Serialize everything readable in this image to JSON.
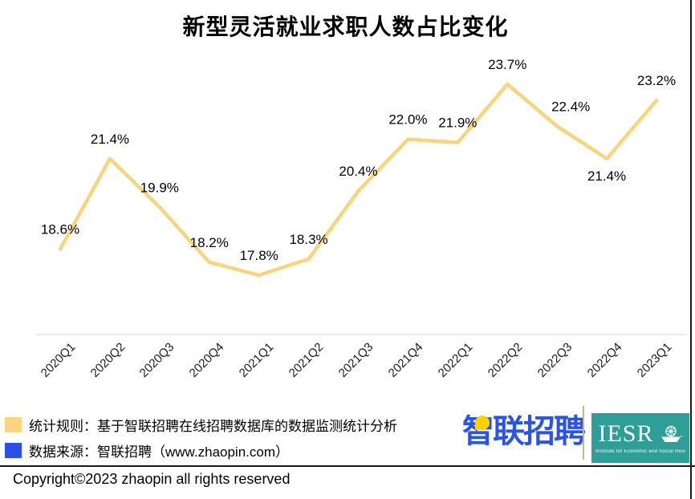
{
  "page": {
    "title": "新型灵活就业求职人数占比变化"
  },
  "chart_data": {
    "type": "line",
    "title": "新型灵活就业求职人数占比变化",
    "categories": [
      "2020Q1",
      "2020Q2",
      "2020Q3",
      "2020Q4",
      "2021Q1",
      "2021Q2",
      "2021Q3",
      "2021Q4",
      "2022Q1",
      "2022Q2",
      "2022Q3",
      "2022Q4",
      "2023Q1"
    ],
    "values": [
      18.6,
      21.4,
      19.9,
      18.2,
      17.8,
      18.3,
      20.4,
      22.0,
      21.9,
      23.7,
      22.4,
      21.4,
      23.2
    ],
    "point_labels": [
      "18.6%",
      "21.4%",
      "19.9%",
      "18.2%",
      "17.8%",
      "18.3%",
      "20.4%",
      "22.0%",
      "21.9%",
      "23.7%",
      "22.4%",
      "21.4%",
      "23.2%"
    ],
    "xlabel": "",
    "ylabel": "",
    "ylim": [
      17,
      25
    ],
    "grid": false,
    "legend_position": "none",
    "line_color": "#F8D57C",
    "axis_line_color": "#DCDCDC",
    "label_color": "#000000"
  },
  "footnotes": {
    "items": [
      {
        "swatch_color": "#F8D57E",
        "text": "统计规则：基于智联招聘在线招聘数据库的数据监测统计分析"
      },
      {
        "swatch_color": "#2B4FE8",
        "text": "数据来源：智联招聘（www.zhaopin.com）"
      }
    ]
  },
  "branding": {
    "zhaopin_logo_text": "智联招聘",
    "zhaopin_blue": "#2B53E7",
    "pin_yellow": "#FFD200",
    "iesr_text": "IESR",
    "iesr_tagline": "Institute for Economic and Social Research Jinan University",
    "iesr_teal": "#2F9E97"
  },
  "footer": {
    "copyright": "Copyright©2023 zhaopin all rights reserved"
  }
}
